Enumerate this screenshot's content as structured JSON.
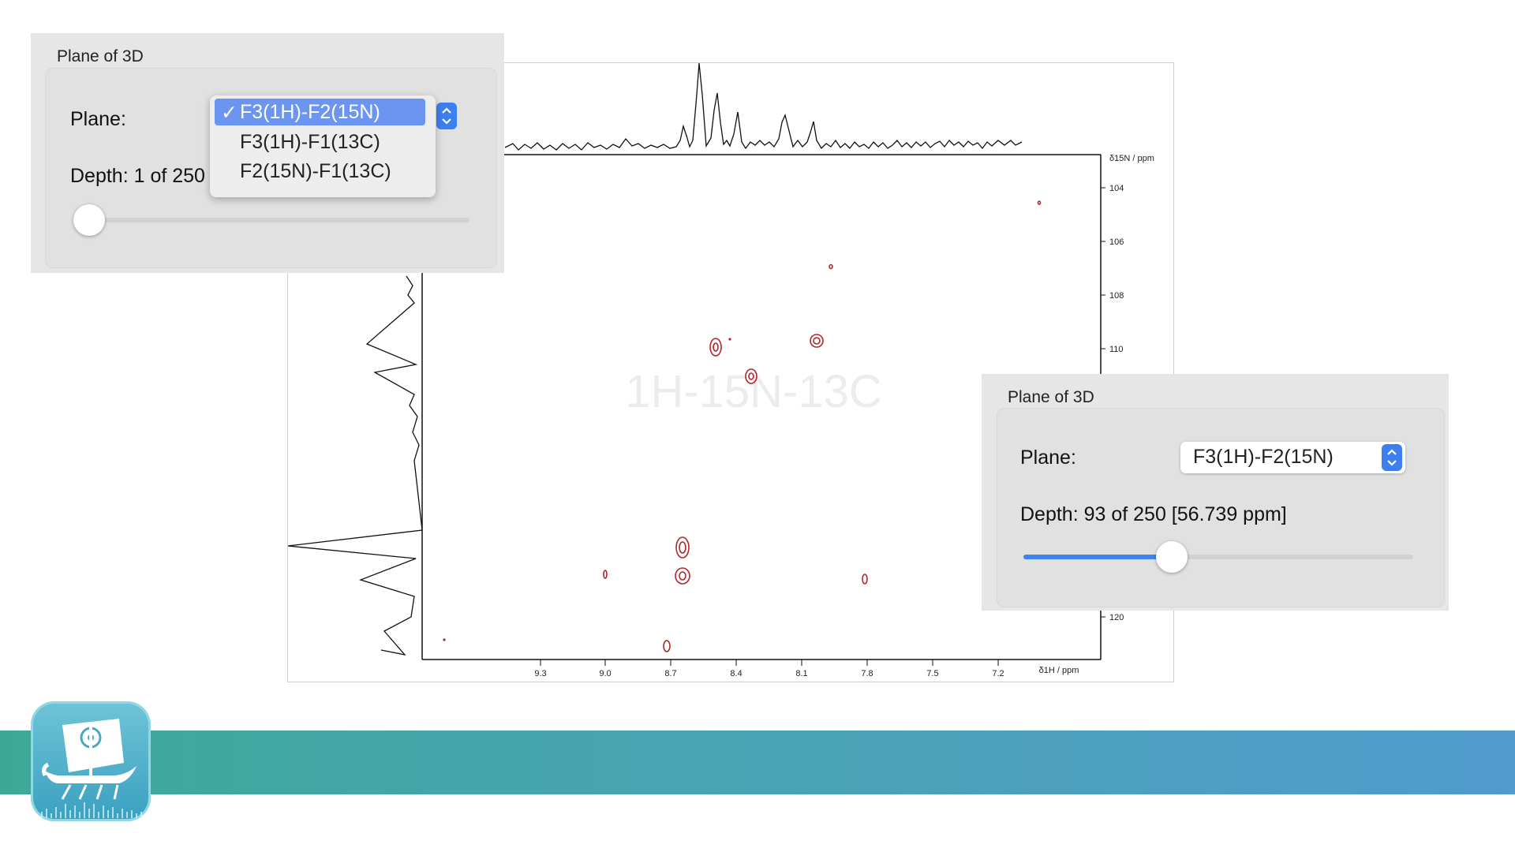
{
  "spectrum": {
    "y_axis_label": "δ15N / ppm",
    "x_axis_label": "δ1H / ppm",
    "y_ticks": [
      "104",
      "106",
      "108",
      "110",
      "120"
    ],
    "x_ticks": [
      "9.3",
      "9.0",
      "8.7",
      "8.4",
      "8.1",
      "7.8",
      "7.5",
      "7.2"
    ],
    "watermark": "1H-15N-13C",
    "contour_color": "#b0262c"
  },
  "panel_left": {
    "title": "Plane of 3D",
    "plane_label": "Plane:",
    "depth_label": "Depth: 1 of 250",
    "slider_value_fraction": 0.0,
    "menu": {
      "check": "✓",
      "items": [
        "F3(1H)-F2(15N)",
        "F3(1H)-F1(13C)",
        "F2(15N)-F1(13C)"
      ],
      "selected_index": 0
    }
  },
  "panel_right": {
    "title": "Plane of 3D",
    "plane_label": "Plane:",
    "plane_value": "F3(1H)-F2(15N)",
    "depth_label": "Depth: 93 of 250 [56.739 ppm]",
    "slider_value_fraction": 0.37
  },
  "colors": {
    "accent_blue": "#3d7ff0",
    "banner_start": "#3ea898",
    "banner_end": "#4f9ccd"
  },
  "icons": {
    "app_icon": "viking-ship-icon",
    "stepper": "up-down-chevron-icon"
  }
}
